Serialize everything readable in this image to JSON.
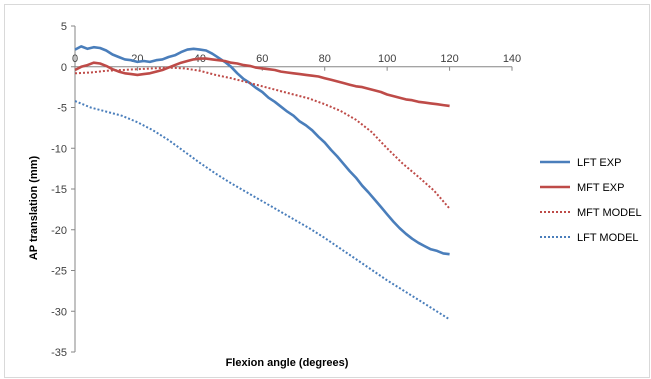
{
  "chart_data": {
    "type": "line",
    "title": "",
    "xlabel": "Flexion angle (degrees)",
    "ylabel": "AP translation  (mm)",
    "xlim": [
      0,
      140
    ],
    "ylim": [
      -35,
      5
    ],
    "x_ticks": [
      0,
      20,
      40,
      60,
      80,
      100,
      120,
      140
    ],
    "y_ticks": [
      5,
      0,
      -5,
      -10,
      -15,
      -20,
      -25,
      -30,
      -35
    ],
    "grid": false,
    "legend_position": "right",
    "series": [
      {
        "name": "LFT EXP",
        "color": "#4a7ebb",
        "style": "solid",
        "points": [
          [
            0,
            2.1
          ],
          [
            2,
            2.5
          ],
          [
            4,
            2.2
          ],
          [
            6,
            2.4
          ],
          [
            8,
            2.3
          ],
          [
            10,
            2.0
          ],
          [
            12,
            1.5
          ],
          [
            14,
            1.2
          ],
          [
            16,
            0.9
          ],
          [
            18,
            0.8
          ],
          [
            20,
            0.6
          ],
          [
            22,
            0.7
          ],
          [
            24,
            0.6
          ],
          [
            26,
            0.8
          ],
          [
            28,
            0.9
          ],
          [
            30,
            1.2
          ],
          [
            32,
            1.4
          ],
          [
            34,
            1.8
          ],
          [
            36,
            2.1
          ],
          [
            38,
            2.2
          ],
          [
            40,
            2.1
          ],
          [
            42,
            2.0
          ],
          [
            44,
            1.6
          ],
          [
            46,
            1.1
          ],
          [
            48,
            0.6
          ],
          [
            50,
            0.0
          ],
          [
            52,
            -0.8
          ],
          [
            54,
            -1.5
          ],
          [
            56,
            -2.0
          ],
          [
            58,
            -2.6
          ],
          [
            60,
            -3.1
          ],
          [
            62,
            -3.8
          ],
          [
            64,
            -4.3
          ],
          [
            66,
            -4.9
          ],
          [
            68,
            -5.5
          ],
          [
            70,
            -6.0
          ],
          [
            72,
            -6.7
          ],
          [
            74,
            -7.2
          ],
          [
            76,
            -7.8
          ],
          [
            78,
            -8.6
          ],
          [
            80,
            -9.3
          ],
          [
            82,
            -10.2
          ],
          [
            84,
            -11.0
          ],
          [
            86,
            -11.9
          ],
          [
            88,
            -12.8
          ],
          [
            90,
            -13.6
          ],
          [
            92,
            -14.6
          ],
          [
            94,
            -15.4
          ],
          [
            96,
            -16.3
          ],
          [
            98,
            -17.2
          ],
          [
            100,
            -18.1
          ],
          [
            102,
            -19.0
          ],
          [
            104,
            -19.8
          ],
          [
            106,
            -20.5
          ],
          [
            108,
            -21.1
          ],
          [
            110,
            -21.6
          ],
          [
            112,
            -22.0
          ],
          [
            114,
            -22.4
          ],
          [
            116,
            -22.6
          ],
          [
            118,
            -22.9
          ],
          [
            120,
            -23.0
          ]
        ]
      },
      {
        "name": "MFT EXP",
        "color": "#be4b48",
        "style": "solid",
        "points": [
          [
            0,
            -0.4
          ],
          [
            2,
            0.0
          ],
          [
            4,
            0.2
          ],
          [
            6,
            0.5
          ],
          [
            8,
            0.4
          ],
          [
            10,
            0.1
          ],
          [
            12,
            -0.3
          ],
          [
            14,
            -0.6
          ],
          [
            16,
            -0.8
          ],
          [
            18,
            -0.9
          ],
          [
            20,
            -1.0
          ],
          [
            22,
            -0.9
          ],
          [
            24,
            -0.8
          ],
          [
            26,
            -0.6
          ],
          [
            28,
            -0.4
          ],
          [
            30,
            -0.1
          ],
          [
            32,
            0.2
          ],
          [
            34,
            0.5
          ],
          [
            36,
            0.7
          ],
          [
            38,
            0.9
          ],
          [
            40,
            1.0
          ],
          [
            42,
            1.0
          ],
          [
            44,
            0.9
          ],
          [
            46,
            0.8
          ],
          [
            48,
            0.7
          ],
          [
            50,
            0.5
          ],
          [
            52,
            0.4
          ],
          [
            54,
            0.2
          ],
          [
            56,
            0.1
          ],
          [
            58,
            -0.1
          ],
          [
            60,
            -0.2
          ],
          [
            62,
            -0.3
          ],
          [
            64,
            -0.4
          ],
          [
            66,
            -0.6
          ],
          [
            68,
            -0.7
          ],
          [
            70,
            -0.8
          ],
          [
            72,
            -0.9
          ],
          [
            74,
            -1.0
          ],
          [
            76,
            -1.1
          ],
          [
            78,
            -1.2
          ],
          [
            80,
            -1.4
          ],
          [
            82,
            -1.6
          ],
          [
            84,
            -1.8
          ],
          [
            86,
            -2.0
          ],
          [
            88,
            -2.2
          ],
          [
            90,
            -2.4
          ],
          [
            92,
            -2.5
          ],
          [
            94,
            -2.7
          ],
          [
            96,
            -2.9
          ],
          [
            98,
            -3.1
          ],
          [
            100,
            -3.4
          ],
          [
            102,
            -3.6
          ],
          [
            104,
            -3.8
          ],
          [
            106,
            -4.0
          ],
          [
            108,
            -4.1
          ],
          [
            110,
            -4.3
          ],
          [
            112,
            -4.4
          ],
          [
            114,
            -4.5
          ],
          [
            116,
            -4.6
          ],
          [
            118,
            -4.7
          ],
          [
            120,
            -4.8
          ]
        ]
      },
      {
        "name": "MFT MODEL",
        "color": "#be4b48",
        "style": "dotted",
        "points": [
          [
            0,
            -0.8
          ],
          [
            5,
            -0.7
          ],
          [
            10,
            -0.5
          ],
          [
            15,
            -0.4
          ],
          [
            20,
            -0.3
          ],
          [
            25,
            -0.2
          ],
          [
            30,
            -0.1
          ],
          [
            35,
            -0.2
          ],
          [
            40,
            -0.5
          ],
          [
            45,
            -1.0
          ],
          [
            50,
            -1.4
          ],
          [
            55,
            -1.9
          ],
          [
            60,
            -2.4
          ],
          [
            65,
            -2.9
          ],
          [
            70,
            -3.4
          ],
          [
            75,
            -3.9
          ],
          [
            80,
            -4.6
          ],
          [
            85,
            -5.4
          ],
          [
            90,
            -6.5
          ],
          [
            95,
            -8.0
          ],
          [
            100,
            -10.0
          ],
          [
            105,
            -11.9
          ],
          [
            110,
            -13.5
          ],
          [
            115,
            -15.2
          ],
          [
            120,
            -17.4
          ]
        ]
      },
      {
        "name": "LFT MODEL",
        "color": "#4a7ebb",
        "style": "dotted",
        "points": [
          [
            0,
            -4.2
          ],
          [
            5,
            -5.0
          ],
          [
            10,
            -5.5
          ],
          [
            15,
            -6.0
          ],
          [
            20,
            -6.8
          ],
          [
            25,
            -7.8
          ],
          [
            30,
            -9.0
          ],
          [
            35,
            -10.4
          ],
          [
            40,
            -11.8
          ],
          [
            45,
            -13.1
          ],
          [
            50,
            -14.3
          ],
          [
            55,
            -15.4
          ],
          [
            60,
            -16.5
          ],
          [
            65,
            -17.6
          ],
          [
            70,
            -18.7
          ],
          [
            75,
            -19.8
          ],
          [
            80,
            -21.0
          ],
          [
            85,
            -22.3
          ],
          [
            90,
            -23.6
          ],
          [
            95,
            -24.9
          ],
          [
            100,
            -26.2
          ],
          [
            105,
            -27.4
          ],
          [
            110,
            -28.6
          ],
          [
            115,
            -29.8
          ],
          [
            120,
            -31.0
          ]
        ]
      }
    ]
  }
}
